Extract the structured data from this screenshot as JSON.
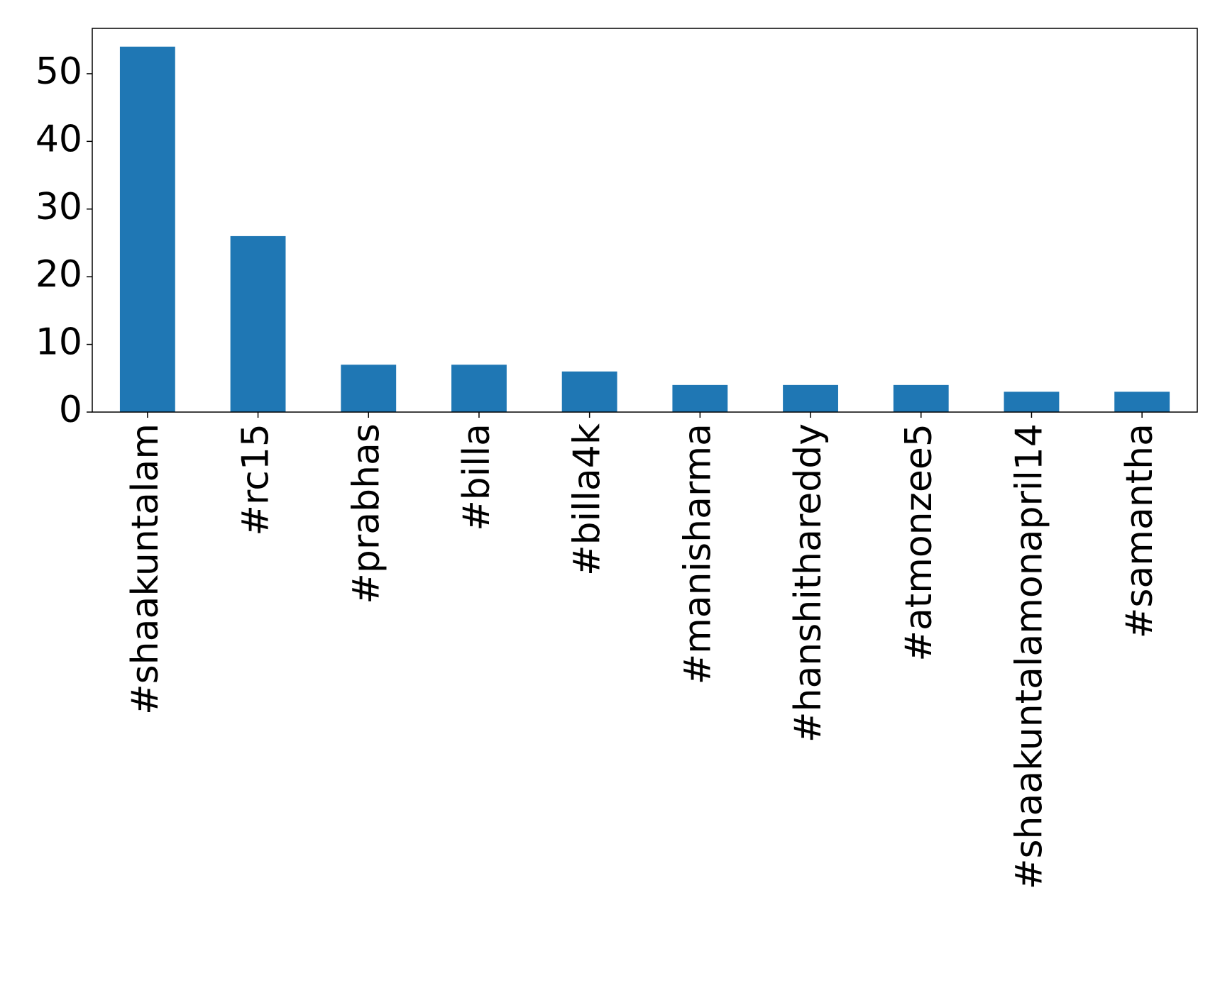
{
  "chart_data": {
    "type": "bar",
    "categories": [
      "#shaakuntalam",
      "#rc15",
      "#prabhas",
      "#billa",
      "#billa4k",
      "#manisharma",
      "#hanshithareddy",
      "#atmonzee5",
      "#shaakuntalamonapril14",
      "#samantha"
    ],
    "values": [
      54,
      26,
      7,
      7,
      6,
      4,
      4,
      4,
      3,
      3
    ],
    "color": "#1f77b4",
    "ylim": [
      0,
      56.7
    ],
    "yticks": [
      0,
      10,
      20,
      30,
      40,
      50
    ],
    "grid": false
  }
}
